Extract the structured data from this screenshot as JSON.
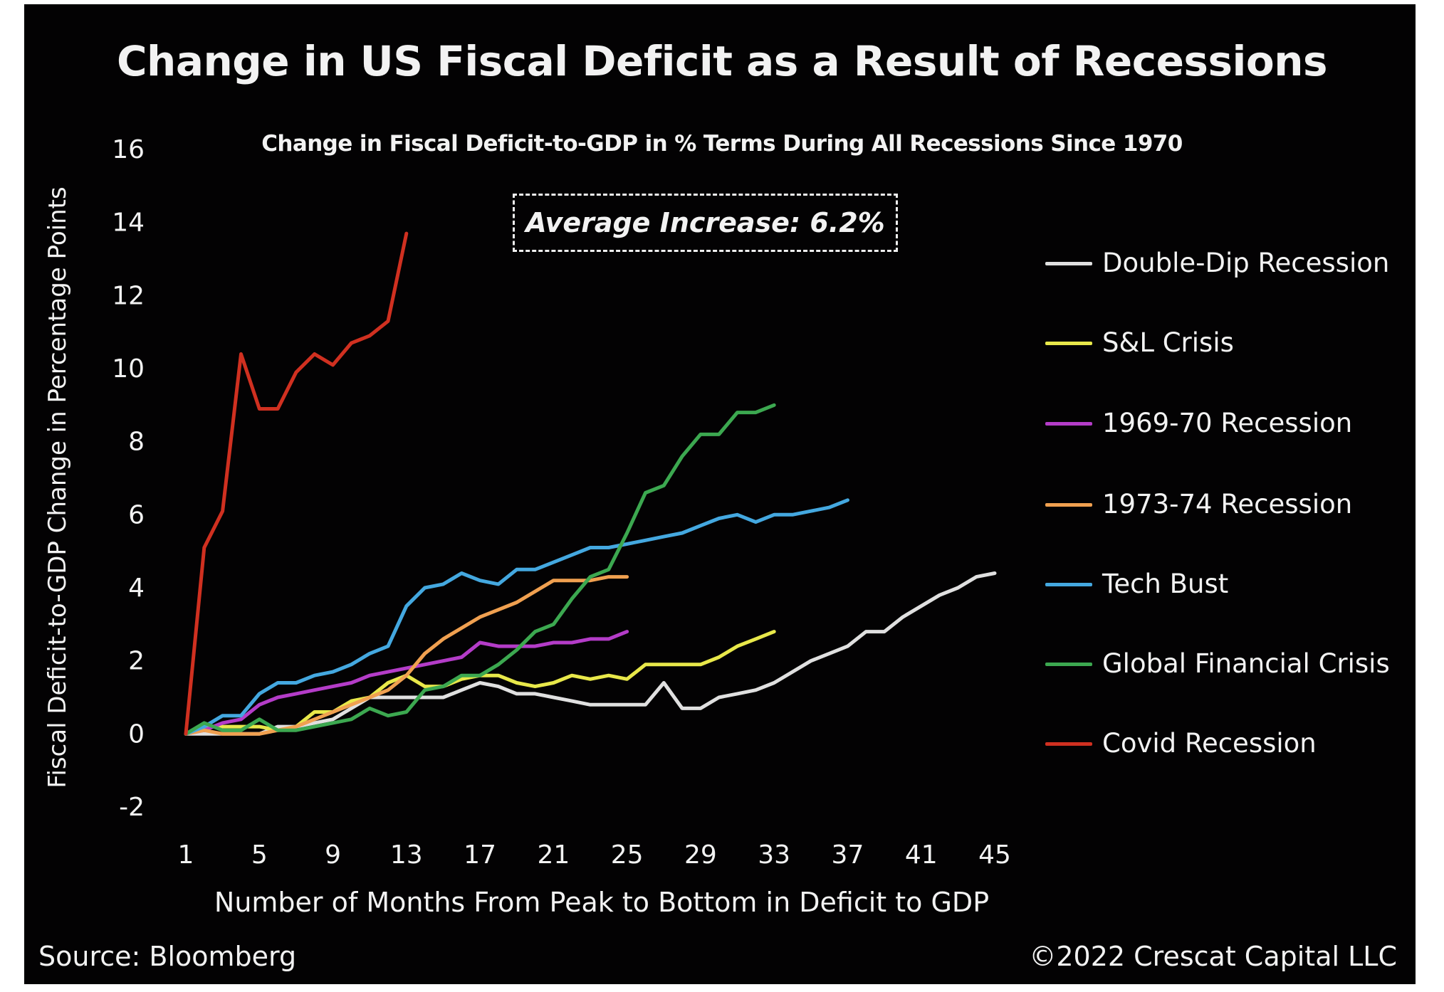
{
  "chart_data": {
    "type": "line",
    "title": "Change in US Fiscal Deficit as a Result of Recessions",
    "subtitle": "Change in Fiscal Deficit-to-GDP in % Terms During All Recessions Since 1970",
    "annotation": "Average Increase: 6.2%",
    "xlabel": "Number of Months From Peak to Bottom in Deficit to GDP",
    "ylabel": "Fiscal Deficit-to-GDP Change in Percentage Points",
    "xlim": [
      1,
      45
    ],
    "ylim": [
      -2,
      16
    ],
    "x_ticks": [
      1,
      5,
      9,
      13,
      17,
      21,
      25,
      29,
      33,
      37,
      41,
      45
    ],
    "y_ticks": [
      16,
      14,
      12,
      10,
      8,
      6,
      4,
      2,
      0,
      -2
    ],
    "grid": false,
    "legend_position": "right",
    "series": [
      {
        "name": "Double-Dip Recession",
        "color": "#e0e0e0",
        "values": [
          0,
          0.0,
          0.0,
          0.0,
          0.0,
          0.2,
          0.2,
          0.3,
          0.4,
          0.7,
          1.0,
          1.0,
          1.0,
          1.0,
          1.0,
          1.2,
          1.4,
          1.3,
          1.1,
          1.1,
          1.0,
          0.9,
          0.8,
          0.8,
          0.8,
          0.8,
          1.4,
          0.7,
          0.7,
          1.0,
          1.1,
          1.2,
          1.4,
          1.7,
          2.0,
          2.2,
          2.4,
          2.8,
          2.8,
          3.2,
          3.5,
          3.8,
          4.0,
          4.3,
          4.4
        ]
      },
      {
        "name": "S&L Crisis",
        "color": "#e8e84a",
        "values": [
          0,
          0.2,
          0.2,
          0.2,
          0.2,
          0.1,
          0.2,
          0.6,
          0.6,
          0.9,
          1.0,
          1.4,
          1.6,
          1.3,
          1.3,
          1.5,
          1.6,
          1.6,
          1.4,
          1.3,
          1.4,
          1.6,
          1.5,
          1.6,
          1.5,
          1.9,
          1.9,
          1.9,
          1.9,
          2.1,
          2.4,
          2.6,
          2.8
        ]
      },
      {
        "name": "1969-70 Recession",
        "color": "#b43cc8",
        "values": [
          0,
          0.1,
          0.3,
          0.4,
          0.8,
          1.0,
          1.1,
          1.2,
          1.3,
          1.4,
          1.6,
          1.7,
          1.8,
          1.9,
          2.0,
          2.1,
          2.5,
          2.4,
          2.4,
          2.4,
          2.5,
          2.5,
          2.6,
          2.6,
          2.8
        ]
      },
      {
        "name": "1973-74 Recession",
        "color": "#f0a050",
        "values": [
          0,
          0.1,
          0.0,
          0.0,
          0.0,
          0.1,
          0.2,
          0.4,
          0.6,
          0.8,
          1.0,
          1.2,
          1.6,
          2.2,
          2.6,
          2.9,
          3.2,
          3.4,
          3.6,
          3.9,
          4.2,
          4.2,
          4.2,
          4.3,
          4.3
        ]
      },
      {
        "name": "Tech Bust",
        "color": "#44a8e0",
        "values": [
          0,
          0.2,
          0.5,
          0.5,
          1.1,
          1.4,
          1.4,
          1.6,
          1.7,
          1.9,
          2.2,
          2.4,
          3.5,
          4.0,
          4.1,
          4.4,
          4.2,
          4.1,
          4.5,
          4.5,
          4.7,
          4.9,
          5.1,
          5.1,
          5.2,
          5.3,
          5.4,
          5.5,
          5.7,
          5.9,
          6.0,
          5.8,
          6.0,
          6.0,
          6.1,
          6.2,
          6.4
        ]
      },
      {
        "name": "Global Financial Crisis",
        "color": "#3ca850",
        "values": [
          0,
          0.3,
          0.1,
          0.1,
          0.4,
          0.1,
          0.1,
          0.2,
          0.3,
          0.4,
          0.7,
          0.5,
          0.6,
          1.2,
          1.3,
          1.6,
          1.6,
          1.9,
          2.3,
          2.8,
          3.0,
          3.7,
          4.3,
          4.5,
          5.5,
          6.6,
          6.8,
          7.6,
          8.2,
          8.2,
          8.8,
          8.8,
          9.0
        ]
      },
      {
        "name": "Covid Recession",
        "color": "#d03020",
        "values": [
          0,
          5.1,
          6.1,
          10.4,
          8.9,
          8.9,
          9.9,
          10.4,
          10.1,
          10.7,
          10.9,
          11.3,
          13.7
        ]
      }
    ]
  },
  "footer": {
    "source": "Source: Bloomberg",
    "copyright": "©2022 Crescat Capital LLC"
  }
}
